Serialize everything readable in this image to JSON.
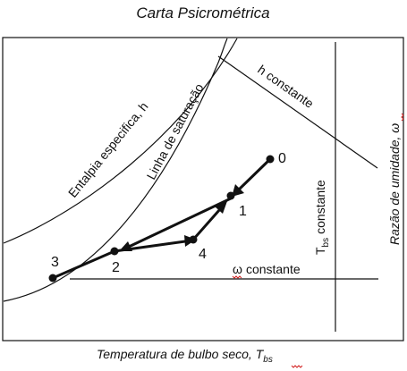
{
  "title": "Carta Psicrométrica",
  "x_axis": {
    "label": "Temperatura de bulbo seco, ",
    "symbol": "T",
    "subscript": "bs"
  },
  "y_axis": {
    "label": "Razão de umidade, ",
    "symbol": "ω"
  },
  "curves": {
    "enthalpy_label": "Entalpia especifica, h",
    "saturation_label": "Linha de saturação",
    "h_constant_label": "h constante",
    "omega_constant_label": "constante",
    "omega_symbol": "ω",
    "tbs_constant_label": "constante",
    "tbs_symbol": "T",
    "tbs_subscript": "bs"
  },
  "points": [
    {
      "id": "0",
      "label": "0"
    },
    {
      "id": "1",
      "label": "1"
    },
    {
      "id": "2",
      "label": "2"
    },
    {
      "id": "3",
      "label": "3"
    },
    {
      "id": "4",
      "label": "4"
    }
  ],
  "colors": {
    "line": "#111111",
    "spell_underline": "#d22020"
  }
}
